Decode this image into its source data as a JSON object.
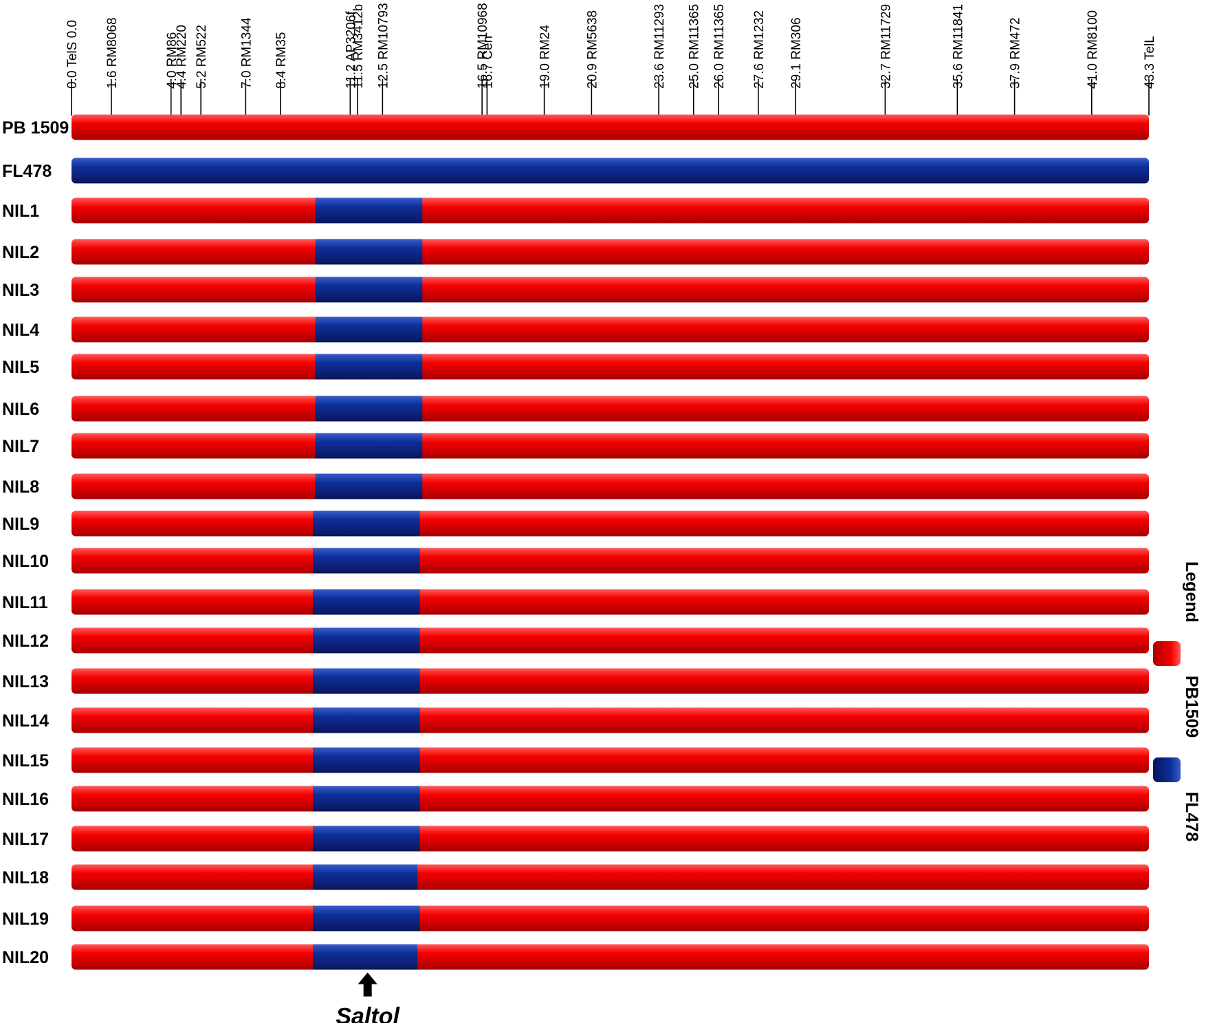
{
  "colors": {
    "pb1509": "#f40000",
    "fl478": "#0b2f9a",
    "tick": "#000000"
  },
  "chart_data": {
    "type": "graphical-genotype",
    "x_unit": "cM",
    "x_range": [
      0.0,
      43.3
    ],
    "markers": [
      {
        "pos": "0.0",
        "name": "TelS",
        "value": 0.0,
        "label": "0.0 TelS 0.0"
      },
      {
        "pos": "1.6",
        "name": "RM8068",
        "value": 1.6,
        "label": "1.6 RM8068"
      },
      {
        "pos": "4.0",
        "name": "RM86",
        "value": 4.0,
        "label": "4.0  RM86"
      },
      {
        "pos": "4.4",
        "name": "RM220",
        "value": 4.4,
        "label": "4.4  RM220"
      },
      {
        "pos": "5.2",
        "name": "RM522",
        "value": 5.2,
        "label": "5.2  RM522"
      },
      {
        "pos": "7.0",
        "name": "RM1344",
        "value": 7.0,
        "label": "7.0  RM1344"
      },
      {
        "pos": "8.4",
        "name": "RM35",
        "value": 8.4,
        "label": "8.4  RM35"
      },
      {
        "pos": "11.2",
        "name": "AP3206f",
        "value": 11.2,
        "label": "11.2 AP3206f"
      },
      {
        "pos": "11.5",
        "name": "RM3412b",
        "value": 11.5,
        "label": "11.5 RM3412b"
      },
      {
        "pos": "12.5",
        "name": "RM10793",
        "value": 12.5,
        "label": "12.5 RM10793"
      },
      {
        "pos": "16.5",
        "name": "RM10968",
        "value": 16.5,
        "label": "16.5 RM10968"
      },
      {
        "pos": "16.7",
        "name": "Cen",
        "value": 16.7,
        "label": "16.7 Cen"
      },
      {
        "pos": "19.0",
        "name": "RM24",
        "value": 19.0,
        "label": "19.0 RM24"
      },
      {
        "pos": "20.9",
        "name": "RM5638",
        "value": 20.9,
        "label": "20.9 RM5638"
      },
      {
        "pos": "23.6",
        "name": "RM11293",
        "value": 23.6,
        "label": "23.6 RM11293"
      },
      {
        "pos": "25.0",
        "name": "RM11365",
        "value": 25.0,
        "label": "25.0 RM11365"
      },
      {
        "pos": "26.0",
        "name": "RM11365",
        "value": 26.0,
        "label": "26.0 RM11365"
      },
      {
        "pos": "27.6",
        "name": "RM1232",
        "value": 27.6,
        "label": "27.6 RM1232"
      },
      {
        "pos": "29.1",
        "name": "RM306",
        "value": 29.1,
        "label": "29.1 RM306"
      },
      {
        "pos": "32.7",
        "name": "RM11729",
        "value": 32.7,
        "label": "32.7 RM11729"
      },
      {
        "pos": "35.6",
        "name": "RM11841",
        "value": 35.6,
        "label": "35.6 RM11841"
      },
      {
        "pos": "37.9",
        "name": "RM472",
        "value": 37.9,
        "label": "37.9 RM472"
      },
      {
        "pos": "41.0",
        "name": "RM8100",
        "value": 41.0,
        "label": "41.0 RM8100"
      },
      {
        "pos": "43.3",
        "name": "TelL",
        "value": 43.3,
        "label": "43.3 TelL"
      }
    ],
    "genotypes": [
      {
        "label": "PB 1509",
        "segments": [
          {
            "from": 0.0,
            "to": 43.3,
            "parent": "PB1509"
          }
        ]
      },
      {
        "label": "FL478",
        "segments": [
          {
            "from": 0.0,
            "to": 43.3,
            "parent": "FL478"
          }
        ]
      },
      {
        "label": "NIL1",
        "segments": [
          {
            "from": 0.0,
            "to": 9.8,
            "parent": "PB1509"
          },
          {
            "from": 9.8,
            "to": 14.1,
            "parent": "FL478"
          },
          {
            "from": 14.1,
            "to": 43.3,
            "parent": "PB1509"
          }
        ]
      },
      {
        "label": "NIL2",
        "segments": [
          {
            "from": 0.0,
            "to": 9.8,
            "parent": "PB1509"
          },
          {
            "from": 9.8,
            "to": 14.1,
            "parent": "FL478"
          },
          {
            "from": 14.1,
            "to": 43.3,
            "parent": "PB1509"
          }
        ]
      },
      {
        "label": "NIL3",
        "segments": [
          {
            "from": 0.0,
            "to": 9.8,
            "parent": "PB1509"
          },
          {
            "from": 9.8,
            "to": 14.1,
            "parent": "FL478"
          },
          {
            "from": 14.1,
            "to": 43.3,
            "parent": "PB1509"
          }
        ]
      },
      {
        "label": "NIL4",
        "segments": [
          {
            "from": 0.0,
            "to": 9.8,
            "parent": "PB1509"
          },
          {
            "from": 9.8,
            "to": 14.1,
            "parent": "FL478"
          },
          {
            "from": 14.1,
            "to": 43.3,
            "parent": "PB1509"
          }
        ]
      },
      {
        "label": "NIL5",
        "segments": [
          {
            "from": 0.0,
            "to": 9.8,
            "parent": "PB1509"
          },
          {
            "from": 9.8,
            "to": 14.1,
            "parent": "FL478"
          },
          {
            "from": 14.1,
            "to": 43.3,
            "parent": "PB1509"
          }
        ]
      },
      {
        "label": "NIL6",
        "segments": [
          {
            "from": 0.0,
            "to": 9.8,
            "parent": "PB1509"
          },
          {
            "from": 9.8,
            "to": 14.1,
            "parent": "FL478"
          },
          {
            "from": 14.1,
            "to": 43.3,
            "parent": "PB1509"
          }
        ]
      },
      {
        "label": "NIL7",
        "segments": [
          {
            "from": 0.0,
            "to": 9.8,
            "parent": "PB1509"
          },
          {
            "from": 9.8,
            "to": 14.1,
            "parent": "FL478"
          },
          {
            "from": 14.1,
            "to": 43.3,
            "parent": "PB1509"
          }
        ]
      },
      {
        "label": "NIL8",
        "segments": [
          {
            "from": 0.0,
            "to": 9.8,
            "parent": "PB1509"
          },
          {
            "from": 9.8,
            "to": 14.1,
            "parent": "FL478"
          },
          {
            "from": 14.1,
            "to": 43.3,
            "parent": "PB1509"
          }
        ]
      },
      {
        "label": "NIL9",
        "segments": [
          {
            "from": 0.0,
            "to": 9.7,
            "parent": "PB1509"
          },
          {
            "from": 9.7,
            "to": 14.0,
            "parent": "FL478"
          },
          {
            "from": 14.0,
            "to": 43.3,
            "parent": "PB1509"
          }
        ]
      },
      {
        "label": "NIL10",
        "segments": [
          {
            "from": 0.0,
            "to": 9.7,
            "parent": "PB1509"
          },
          {
            "from": 9.7,
            "to": 14.0,
            "parent": "FL478"
          },
          {
            "from": 14.0,
            "to": 43.3,
            "parent": "PB1509"
          }
        ]
      },
      {
        "label": "NIL11",
        "segments": [
          {
            "from": 0.0,
            "to": 9.7,
            "parent": "PB1509"
          },
          {
            "from": 9.7,
            "to": 14.0,
            "parent": "FL478"
          },
          {
            "from": 14.0,
            "to": 43.3,
            "parent": "PB1509"
          }
        ]
      },
      {
        "label": "NIL12",
        "segments": [
          {
            "from": 0.0,
            "to": 9.7,
            "parent": "PB1509"
          },
          {
            "from": 9.7,
            "to": 14.0,
            "parent": "FL478"
          },
          {
            "from": 14.0,
            "to": 43.3,
            "parent": "PB1509"
          }
        ]
      },
      {
        "label": "NIL13",
        "segments": [
          {
            "from": 0.0,
            "to": 9.7,
            "parent": "PB1509"
          },
          {
            "from": 9.7,
            "to": 14.0,
            "parent": "FL478"
          },
          {
            "from": 14.0,
            "to": 43.3,
            "parent": "PB1509"
          }
        ]
      },
      {
        "label": "NIL14",
        "segments": [
          {
            "from": 0.0,
            "to": 9.7,
            "parent": "PB1509"
          },
          {
            "from": 9.7,
            "to": 14.0,
            "parent": "FL478"
          },
          {
            "from": 14.0,
            "to": 43.3,
            "parent": "PB1509"
          }
        ]
      },
      {
        "label": "NIL15",
        "segments": [
          {
            "from": 0.0,
            "to": 9.7,
            "parent": "PB1509"
          },
          {
            "from": 9.7,
            "to": 14.0,
            "parent": "FL478"
          },
          {
            "from": 14.0,
            "to": 43.3,
            "parent": "PB1509"
          }
        ]
      },
      {
        "label": "NIL16",
        "segments": [
          {
            "from": 0.0,
            "to": 9.7,
            "parent": "PB1509"
          },
          {
            "from": 9.7,
            "to": 14.0,
            "parent": "FL478"
          },
          {
            "from": 14.0,
            "to": 43.3,
            "parent": "PB1509"
          }
        ]
      },
      {
        "label": "NIL17",
        "segments": [
          {
            "from": 0.0,
            "to": 9.7,
            "parent": "PB1509"
          },
          {
            "from": 9.7,
            "to": 14.0,
            "parent": "FL478"
          },
          {
            "from": 14.0,
            "to": 43.3,
            "parent": "PB1509"
          }
        ]
      },
      {
        "label": "NIL18",
        "segments": [
          {
            "from": 0.0,
            "to": 9.7,
            "parent": "PB1509"
          },
          {
            "from": 9.7,
            "to": 13.9,
            "parent": "FL478"
          },
          {
            "from": 13.9,
            "to": 43.3,
            "parent": "PB1509"
          }
        ]
      },
      {
        "label": "NIL19",
        "segments": [
          {
            "from": 0.0,
            "to": 9.7,
            "parent": "PB1509"
          },
          {
            "from": 9.7,
            "to": 14.0,
            "parent": "FL478"
          },
          {
            "from": 14.0,
            "to": 43.3,
            "parent": "PB1509"
          }
        ]
      },
      {
        "label": "NIL20",
        "segments": [
          {
            "from": 0.0,
            "to": 9.7,
            "parent": "PB1509"
          },
          {
            "from": 9.7,
            "to": 13.9,
            "parent": "FL478"
          },
          {
            "from": 13.9,
            "to": 43.3,
            "parent": "PB1509"
          }
        ]
      }
    ],
    "annotation": {
      "text": "Saltol",
      "value": 11.9
    },
    "legend": {
      "title": "Legend",
      "placement": "right, rotated",
      "items": [
        {
          "label": "PB1509",
          "color": "#f40000",
          "parent": "PB1509"
        },
        {
          "label": "FL478",
          "color": "#0b2f9a",
          "parent": "FL478"
        }
      ]
    }
  }
}
